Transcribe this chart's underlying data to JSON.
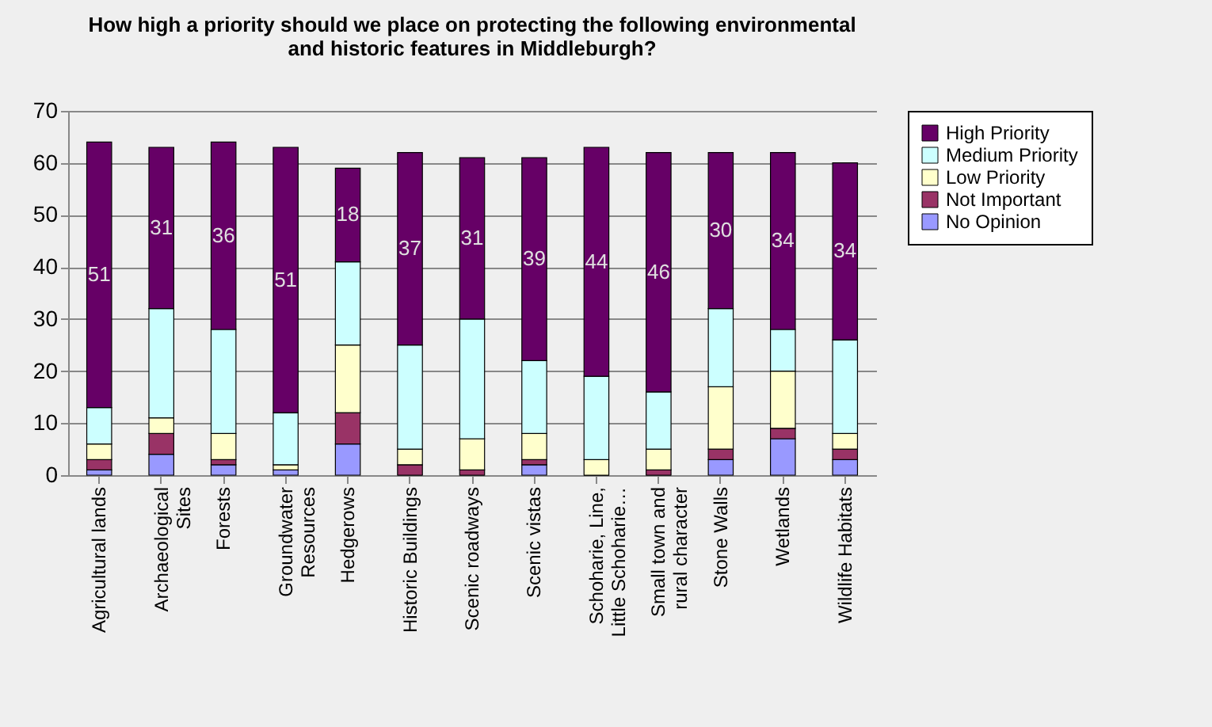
{
  "chart_data": {
    "type": "bar",
    "stacked": true,
    "title": "How high a priority should we place on protecting the following environmental and historic features in Middleburgh?",
    "categories": [
      "Agricultural lands",
      "Archaeological\nSites",
      "Forests",
      "Groundwater\nResources",
      "Hedgerows",
      "Historic Buildings",
      "Scenic roadways",
      "Scenic vistas",
      "Schoharie, Line,\nLittle Schoharie…",
      "Small town and\nrural character",
      "Stone Walls",
      "Wetlands",
      "Wildlife Habitats"
    ],
    "series": [
      {
        "name": "No Opinion",
        "color": "#9999ff",
        "values": [
          1,
          4,
          2,
          1,
          6,
          0,
          0,
          2,
          0,
          0,
          3,
          7,
          3
        ]
      },
      {
        "name": "Not Important",
        "color": "#993366",
        "values": [
          2,
          4,
          1,
          0,
          6,
          2,
          1,
          1,
          0,
          1,
          2,
          2,
          2
        ]
      },
      {
        "name": "Low Priority",
        "color": "#ffffcc",
        "values": [
          3,
          3,
          5,
          1,
          13,
          3,
          6,
          5,
          3,
          4,
          12,
          11,
          3
        ]
      },
      {
        "name": "Medium Priority",
        "color": "#ccffff",
        "values": [
          7,
          21,
          20,
          10,
          16,
          20,
          23,
          14,
          16,
          11,
          15,
          8,
          18
        ]
      },
      {
        "name": "High Priority",
        "color": "#660066",
        "values": [
          51,
          31,
          36,
          51,
          18,
          37,
          31,
          39,
          44,
          46,
          30,
          34,
          34
        ],
        "value_labels": [
          "51",
          "31",
          "36",
          "51",
          "18",
          "37",
          "31",
          "39",
          "44",
          "46",
          "30",
          "34",
          "34"
        ]
      }
    ],
    "ylim": [
      0,
      70
    ],
    "yticks": [
      0,
      10,
      20,
      30,
      40,
      50,
      60,
      70
    ],
    "grid": "y",
    "legend": "right"
  }
}
